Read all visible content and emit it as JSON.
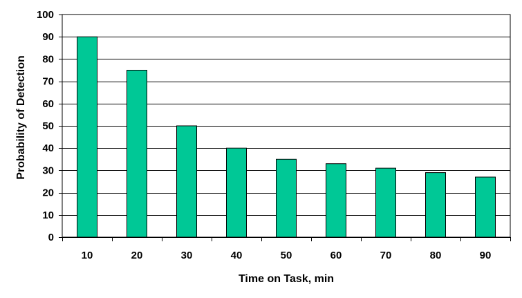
{
  "chart_data": {
    "type": "bar",
    "title": "",
    "xlabel": "Time on Task, min",
    "ylabel": "Probability of Detection",
    "categories": [
      "10",
      "20",
      "30",
      "40",
      "50",
      "60",
      "70",
      "80",
      "90"
    ],
    "values": [
      90,
      75,
      50,
      40,
      35,
      33,
      31,
      29,
      27
    ],
    "ylim": [
      0,
      100
    ],
    "yticks": [
      0,
      10,
      20,
      30,
      40,
      50,
      60,
      70,
      80,
      90,
      100
    ],
    "grid": true,
    "legend": "none",
    "bar_color": "#00c896",
    "bar_edge_color": "#000000"
  }
}
